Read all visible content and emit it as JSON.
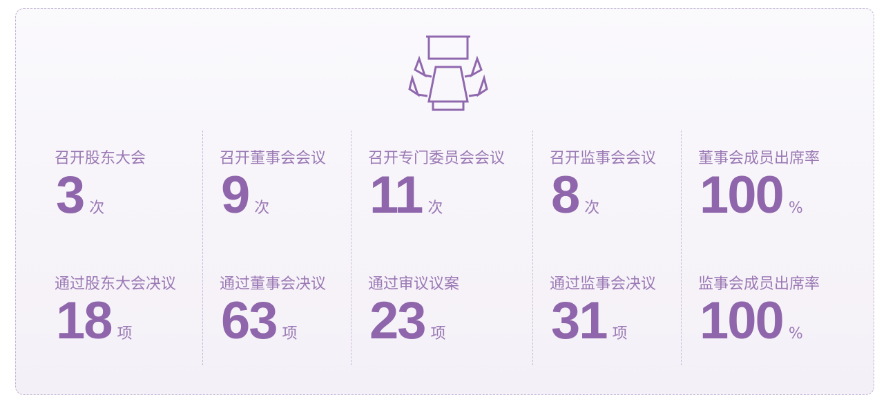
{
  "rows": [
    [
      {
        "label": "召开股东大会",
        "value": "3",
        "unit": "次"
      },
      {
        "label": "召开董事会会议",
        "value": "9",
        "unit": "次"
      },
      {
        "label": "召开专门委员会会议",
        "value": "11",
        "unit": "次"
      },
      {
        "label": "召开监事会会议",
        "value": "8",
        "unit": "次"
      },
      {
        "label": "董事会成员出席率",
        "value": "100",
        "unit": "%"
      }
    ],
    [
      {
        "label": "通过股东大会决议",
        "value": "18",
        "unit": "项"
      },
      {
        "label": "通过董事会决议",
        "value": "63",
        "unit": "项"
      },
      {
        "label": "通过审议议案",
        "value": "23",
        "unit": "项"
      },
      {
        "label": "通过监事会决议",
        "value": "31",
        "unit": "项"
      },
      {
        "label": "监事会成员出席率",
        "value": "100",
        "unit": "%"
      }
    ]
  ]
}
